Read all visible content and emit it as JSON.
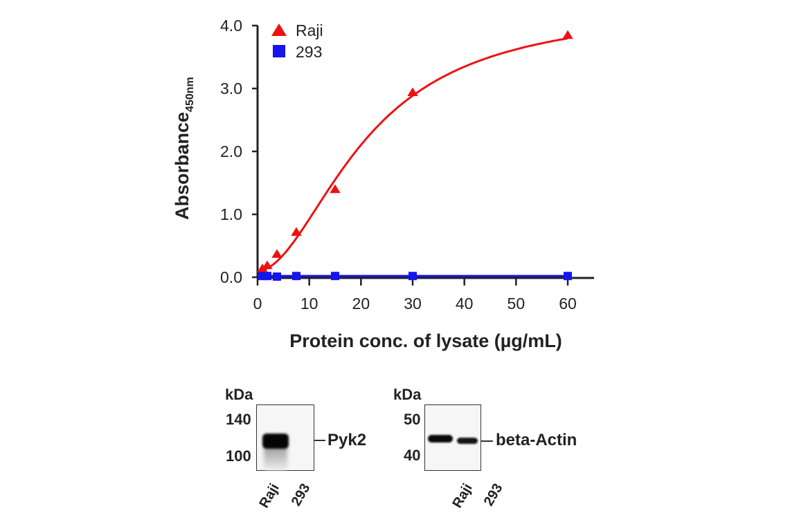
{
  "chart_data": {
    "type": "scatter",
    "xlabel": "Protein conc. of lysate (µg/mL)",
    "ylabel": "Absorbance",
    "ylabel_subscript": "450nm",
    "xlim": [
      0,
      65
    ],
    "ylim": [
      0,
      4.0
    ],
    "xticks": [
      "0",
      "10",
      "20",
      "30",
      "40",
      "50",
      "60"
    ],
    "yticks": [
      "0.0",
      "1.0",
      "2.0",
      "3.0",
      "4.0"
    ],
    "grid": false,
    "legend_position": "top-left",
    "series": [
      {
        "name": "Raji",
        "marker": "triangle",
        "color": "#ee1111",
        "fit_curve": true,
        "x": [
          0.94,
          1.875,
          3.75,
          7.5,
          15,
          30,
          60
        ],
        "y": [
          0.14,
          0.19,
          0.37,
          0.72,
          1.4,
          2.94,
          3.85
        ]
      },
      {
        "name": "293",
        "marker": "square",
        "color": "#1515ee",
        "fit_curve": false,
        "x": [
          0.94,
          1.875,
          3.75,
          7.5,
          15,
          30,
          60
        ],
        "y": [
          0.02,
          0.02,
          0.01,
          0.02,
          0.02,
          0.02,
          0.02
        ]
      }
    ]
  },
  "blots": [
    {
      "unit": "kDa",
      "markers": [
        "140",
        "100"
      ],
      "target": "Pyk2",
      "lanes": [
        "Raji",
        "293"
      ]
    },
    {
      "unit": "kDa",
      "markers": [
        "50",
        "40"
      ],
      "target": "beta-Actin",
      "lanes": [
        "Raji",
        "293"
      ]
    }
  ]
}
